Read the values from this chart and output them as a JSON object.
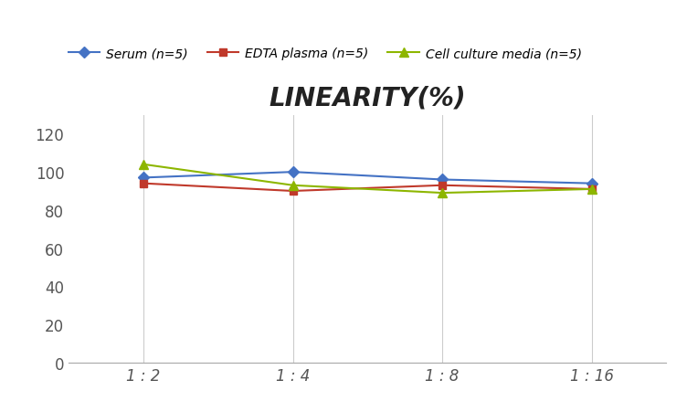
{
  "title": "LINEARITY(%)",
  "x_labels": [
    "1 : 2",
    "1 : 4",
    "1 : 8",
    "1 : 16"
  ],
  "x_positions": [
    0,
    1,
    2,
    3
  ],
  "series": [
    {
      "label": "Serum (n=5)",
      "values": [
        97,
        100,
        96,
        94
      ],
      "color": "#4472C4",
      "marker": "D",
      "linewidth": 1.5,
      "markersize": 6
    },
    {
      "label": "EDTA plasma (n=5)",
      "values": [
        94,
        90,
        93,
        91
      ],
      "color": "#C0392B",
      "marker": "s",
      "linewidth": 1.5,
      "markersize": 6
    },
    {
      "label": "Cell culture media (n=5)",
      "values": [
        104,
        93,
        89,
        91
      ],
      "color": "#8DB600",
      "marker": "^",
      "linewidth": 1.5,
      "markersize": 7
    }
  ],
  "ylim": [
    0,
    130
  ],
  "yticks": [
    0,
    20,
    40,
    60,
    80,
    100,
    120
  ],
  "xlim": [
    -0.5,
    3.5
  ],
  "background_color": "#ffffff",
  "grid_color": "#cccccc",
  "title_fontsize": 20,
  "legend_fontsize": 10,
  "tick_fontsize": 12,
  "tick_color": "#555555"
}
